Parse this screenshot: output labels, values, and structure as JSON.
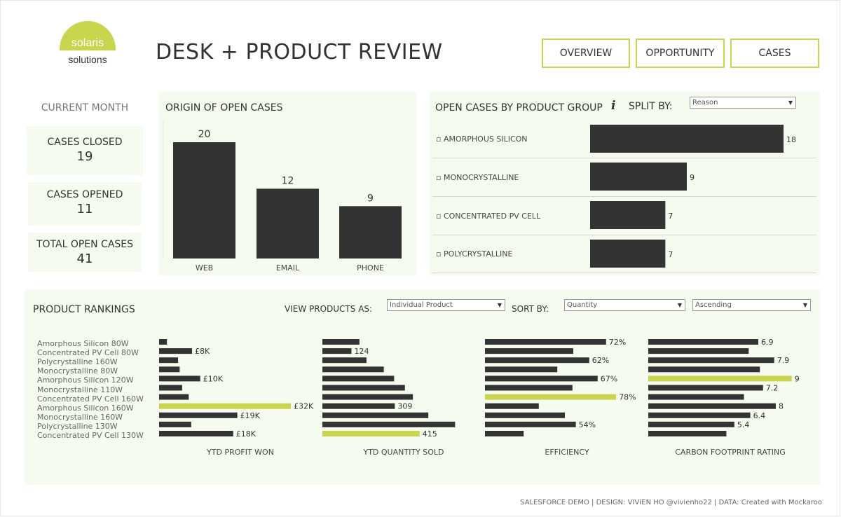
{
  "logo": {
    "line1": "solaris",
    "line2": "solutions",
    "color": "#c9d44f"
  },
  "title": "DESK + PRODUCT REVIEW",
  "nav": [
    {
      "label": "OVERVIEW"
    },
    {
      "label": "OPPORTUNITY"
    },
    {
      "label": "CASES"
    }
  ],
  "kpis": {
    "header": "CURRENT MONTH",
    "items": [
      {
        "label": "CASES CLOSED",
        "value": "19"
      },
      {
        "label": "CASES OPENED",
        "value": "11"
      },
      {
        "label": "TOTAL OPEN CASES",
        "value": "41"
      }
    ]
  },
  "origin": {
    "title": "ORIGIN OF OPEN CASES"
  },
  "product_group": {
    "title": "OPEN CASES BY PRODUCT GROUP",
    "info_icon": "info-icon",
    "split_label": "SPLIT BY:",
    "split_value": "Reason"
  },
  "rankings": {
    "title": "PRODUCT RANKINGS",
    "view_label": "VIEW PRODUCTS AS:",
    "view_value": "Individual Product",
    "sort_label": "SORT BY:",
    "sort_value": "Quantity",
    "order_value": "Ascending",
    "products": [
      "Amorphous Silicon 80W",
      "Concentrated PV Cell 80W",
      "Polycrystalline 160W",
      "Monocrystalline 80W",
      "Amorphous Silicon 120W",
      "Monocrystalline 110W",
      "Concentrated PV Cell 160W",
      "Amorphous Silicon 160W",
      "Monocrystalline 160W",
      "Polycrystalline 130W",
      "Concentrated PV Cell 130W"
    ]
  },
  "footer": "SALESFORCE DEMO | DESIGN: VIVIEN HO @vivienho22 | DATA: Created with Mockaroo",
  "colors": {
    "accent": "#c9d44f",
    "bar": "#333333",
    "panel": "#f5fbee"
  },
  "chart_data": [
    {
      "type": "bar",
      "title": "ORIGIN OF OPEN CASES",
      "categories": [
        "WEB",
        "EMAIL",
        "PHONE"
      ],
      "values": [
        20,
        12,
        9
      ],
      "ylim": [
        0,
        24
      ]
    },
    {
      "type": "bar",
      "orientation": "horizontal",
      "title": "OPEN CASES BY PRODUCT GROUP",
      "categories": [
        "AMORPHOUS SILICON",
        "MONOCRYSTALLINE",
        "CONCENTRATED PV CELL",
        "POLYCRYSTALLINE"
      ],
      "values": [
        18,
        9,
        7,
        7
      ],
      "xlim": [
        0,
        18
      ]
    },
    {
      "type": "bar",
      "orientation": "horizontal",
      "title": "YTD PROFIT WON",
      "values": [
        1.9,
        8,
        4.6,
        5,
        10,
        5.6,
        7.2,
        32,
        19,
        7.8,
        18
      ],
      "labels": [
        "",
        "£8K",
        "",
        "",
        "£10K",
        "",
        "",
        "£32K",
        "£19K",
        "",
        "£18K"
      ],
      "highlight_index": 7,
      "xlim": [
        0,
        32
      ]
    },
    {
      "type": "bar",
      "orientation": "horizontal",
      "title": "YTD QUANTITY SOLD",
      "values": [
        158,
        124,
        188,
        262,
        306,
        352,
        386,
        309,
        452,
        566,
        415
      ],
      "labels": [
        "",
        "124",
        "",
        "",
        "",
        "",
        "",
        "309",
        "",
        "",
        "415"
      ],
      "highlight_index": 10,
      "xlim": [
        0,
        580
      ]
    },
    {
      "type": "bar",
      "orientation": "horizontal",
      "title": "EFFICIENCY",
      "values": [
        72,
        52.5,
        62,
        43,
        67,
        52,
        78,
        32,
        47.5,
        54,
        23
      ],
      "labels": [
        "72%",
        "",
        "62%",
        "",
        "67%",
        "",
        "78%",
        "",
        "",
        "54%",
        ""
      ],
      "highlight_index": 6,
      "xlim": [
        0,
        80
      ]
    },
    {
      "type": "bar",
      "orientation": "horizontal",
      "title": "CARBON FOOTPRINT RATING",
      "values": [
        6.9,
        6.3,
        7.9,
        7.0,
        9,
        7.2,
        6.0,
        8,
        6.4,
        5.4,
        4.9
      ],
      "labels": [
        "6.9",
        "",
        "7.9",
        "",
        "9",
        "7.2",
        "",
        "8",
        "6.4",
        "5.4",
        ""
      ],
      "highlight_index": 4,
      "xlim": [
        0,
        9.1
      ]
    }
  ]
}
